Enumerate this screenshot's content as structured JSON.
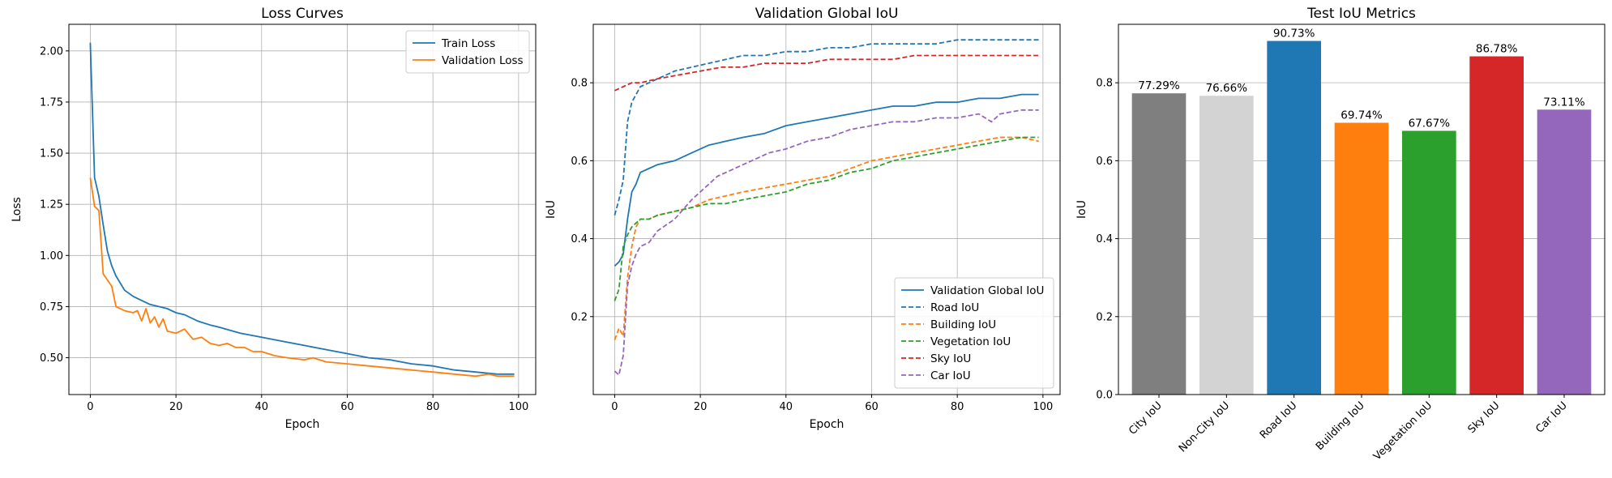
{
  "chart_data": [
    {
      "type": "line",
      "title": "Loss Curves",
      "xlabel": "Epoch",
      "ylabel": "Loss",
      "xlim": [
        -5,
        104
      ],
      "ylim": [
        0.32,
        2.13
      ],
      "xticks": [
        0,
        20,
        40,
        60,
        80,
        100
      ],
      "xtick_labels": [
        "0",
        "20",
        "40",
        "60",
        "80",
        "100"
      ],
      "yticks": [
        0.5,
        0.75,
        1.0,
        1.25,
        1.5,
        1.75,
        2.0
      ],
      "ytick_labels": [
        "0.50",
        "0.75",
        "1.00",
        "1.25",
        "1.50",
        "1.75",
        "2.00"
      ],
      "grid": true,
      "legend": "top-right",
      "series": [
        {
          "name": "Train Loss",
          "color": "#1f77b4",
          "dash": "solid",
          "points": [
            [
              0,
              2.04
            ],
            [
              1,
              1.38
            ],
            [
              2,
              1.29
            ],
            [
              3,
              1.15
            ],
            [
              4,
              1.02
            ],
            [
              5,
              0.95
            ],
            [
              6,
              0.9
            ],
            [
              8,
              0.83
            ],
            [
              10,
              0.8
            ],
            [
              12,
              0.78
            ],
            [
              14,
              0.76
            ],
            [
              16,
              0.75
            ],
            [
              18,
              0.74
            ],
            [
              20,
              0.72
            ],
            [
              22,
              0.71
            ],
            [
              25,
              0.68
            ],
            [
              28,
              0.66
            ],
            [
              30,
              0.65
            ],
            [
              35,
              0.62
            ],
            [
              40,
              0.6
            ],
            [
              45,
              0.58
            ],
            [
              50,
              0.56
            ],
            [
              55,
              0.54
            ],
            [
              60,
              0.52
            ],
            [
              65,
              0.5
            ],
            [
              70,
              0.49
            ],
            [
              75,
              0.47
            ],
            [
              80,
              0.46
            ],
            [
              85,
              0.44
            ],
            [
              90,
              0.43
            ],
            [
              95,
              0.42
            ],
            [
              99,
              0.42
            ]
          ]
        },
        {
          "name": "Validation Loss",
          "color": "#ff7f0e",
          "dash": "solid",
          "points": [
            [
              0,
              1.38
            ],
            [
              1,
              1.24
            ],
            [
              2,
              1.22
            ],
            [
              3,
              0.91
            ],
            [
              4,
              0.88
            ],
            [
              5,
              0.85
            ],
            [
              6,
              0.75
            ],
            [
              8,
              0.73
            ],
            [
              10,
              0.72
            ],
            [
              11,
              0.73
            ],
            [
              12,
              0.68
            ],
            [
              13,
              0.74
            ],
            [
              14,
              0.67
            ],
            [
              15,
              0.7
            ],
            [
              16,
              0.65
            ],
            [
              17,
              0.69
            ],
            [
              18,
              0.63
            ],
            [
              20,
              0.62
            ],
            [
              22,
              0.64
            ],
            [
              24,
              0.59
            ],
            [
              26,
              0.6
            ],
            [
              28,
              0.57
            ],
            [
              30,
              0.56
            ],
            [
              32,
              0.57
            ],
            [
              34,
              0.55
            ],
            [
              36,
              0.55
            ],
            [
              38,
              0.53
            ],
            [
              40,
              0.53
            ],
            [
              43,
              0.51
            ],
            [
              46,
              0.5
            ],
            [
              50,
              0.49
            ],
            [
              52,
              0.5
            ],
            [
              55,
              0.48
            ],
            [
              60,
              0.47
            ],
            [
              65,
              0.46
            ],
            [
              70,
              0.45
            ],
            [
              75,
              0.44
            ],
            [
              80,
              0.43
            ],
            [
              85,
              0.42
            ],
            [
              90,
              0.41
            ],
            [
              93,
              0.42
            ],
            [
              95,
              0.41
            ],
            [
              99,
              0.41
            ]
          ]
        }
      ]
    },
    {
      "type": "line",
      "title": "Validation Global IoU",
      "xlabel": "Epoch",
      "ylabel": "IoU",
      "xlim": [
        -5,
        104
      ],
      "ylim": [
        0.0,
        0.95
      ],
      "xticks": [
        0,
        20,
        40,
        60,
        80,
        100
      ],
      "xtick_labels": [
        "0",
        "20",
        "40",
        "60",
        "80",
        "100"
      ],
      "yticks": [
        0.2,
        0.4,
        0.6,
        0.8
      ],
      "ytick_labels": [
        "0.2",
        "0.4",
        "0.6",
        "0.8"
      ],
      "grid": true,
      "legend": "bottom-right",
      "series": [
        {
          "name": "Validation Global IoU",
          "color": "#1f77b4",
          "dash": "solid",
          "points": [
            [
              0,
              0.33
            ],
            [
              1,
              0.34
            ],
            [
              2,
              0.36
            ],
            [
              3,
              0.45
            ],
            [
              4,
              0.52
            ],
            [
              5,
              0.54
            ],
            [
              6,
              0.57
            ],
            [
              8,
              0.58
            ],
            [
              10,
              0.59
            ],
            [
              14,
              0.6
            ],
            [
              18,
              0.62
            ],
            [
              22,
              0.64
            ],
            [
              26,
              0.65
            ],
            [
              30,
              0.66
            ],
            [
              35,
              0.67
            ],
            [
              40,
              0.69
            ],
            [
              45,
              0.7
            ],
            [
              50,
              0.71
            ],
            [
              55,
              0.72
            ],
            [
              60,
              0.73
            ],
            [
              65,
              0.74
            ],
            [
              70,
              0.74
            ],
            [
              75,
              0.75
            ],
            [
              80,
              0.75
            ],
            [
              85,
              0.76
            ],
            [
              90,
              0.76
            ],
            [
              95,
              0.77
            ],
            [
              99,
              0.77
            ]
          ]
        },
        {
          "name": "Road IoU",
          "color": "#1f77b4",
          "dash": "dashed",
          "points": [
            [
              0,
              0.46
            ],
            [
              1,
              0.5
            ],
            [
              2,
              0.55
            ],
            [
              3,
              0.7
            ],
            [
              4,
              0.75
            ],
            [
              5,
              0.77
            ],
            [
              6,
              0.79
            ],
            [
              8,
              0.8
            ],
            [
              10,
              0.81
            ],
            [
              14,
              0.83
            ],
            [
              18,
              0.84
            ],
            [
              22,
              0.85
            ],
            [
              26,
              0.86
            ],
            [
              30,
              0.87
            ],
            [
              35,
              0.87
            ],
            [
              40,
              0.88
            ],
            [
              45,
              0.88
            ],
            [
              50,
              0.89
            ],
            [
              55,
              0.89
            ],
            [
              60,
              0.9
            ],
            [
              65,
              0.9
            ],
            [
              70,
              0.9
            ],
            [
              75,
              0.9
            ],
            [
              80,
              0.91
            ],
            [
              85,
              0.91
            ],
            [
              90,
              0.91
            ],
            [
              95,
              0.91
            ],
            [
              99,
              0.91
            ]
          ]
        },
        {
          "name": "Building IoU",
          "color": "#ff7f0e",
          "dash": "dashed",
          "points": [
            [
              0,
              0.14
            ],
            [
              1,
              0.17
            ],
            [
              2,
              0.15
            ],
            [
              3,
              0.3
            ],
            [
              4,
              0.38
            ],
            [
              5,
              0.43
            ],
            [
              6,
              0.45
            ],
            [
              8,
              0.45
            ],
            [
              10,
              0.46
            ],
            [
              14,
              0.47
            ],
            [
              18,
              0.48
            ],
            [
              22,
              0.5
            ],
            [
              26,
              0.51
            ],
            [
              30,
              0.52
            ],
            [
              35,
              0.53
            ],
            [
              40,
              0.54
            ],
            [
              45,
              0.55
            ],
            [
              50,
              0.56
            ],
            [
              55,
              0.58
            ],
            [
              60,
              0.6
            ],
            [
              65,
              0.61
            ],
            [
              70,
              0.62
            ],
            [
              75,
              0.63
            ],
            [
              80,
              0.64
            ],
            [
              85,
              0.65
            ],
            [
              90,
              0.66
            ],
            [
              95,
              0.66
            ],
            [
              99,
              0.65
            ]
          ]
        },
        {
          "name": "Vegetation IoU",
          "color": "#2ca02c",
          "dash": "dashed",
          "points": [
            [
              0,
              0.24
            ],
            [
              1,
              0.27
            ],
            [
              2,
              0.38
            ],
            [
              3,
              0.41
            ],
            [
              4,
              0.43
            ],
            [
              5,
              0.44
            ],
            [
              6,
              0.45
            ],
            [
              8,
              0.45
            ],
            [
              10,
              0.46
            ],
            [
              14,
              0.47
            ],
            [
              18,
              0.48
            ],
            [
              22,
              0.49
            ],
            [
              26,
              0.49
            ],
            [
              30,
              0.5
            ],
            [
              35,
              0.51
            ],
            [
              40,
              0.52
            ],
            [
              45,
              0.54
            ],
            [
              50,
              0.55
            ],
            [
              55,
              0.57
            ],
            [
              60,
              0.58
            ],
            [
              65,
              0.6
            ],
            [
              70,
              0.61
            ],
            [
              75,
              0.62
            ],
            [
              80,
              0.63
            ],
            [
              85,
              0.64
            ],
            [
              90,
              0.65
            ],
            [
              95,
              0.66
            ],
            [
              99,
              0.66
            ]
          ]
        },
        {
          "name": "Sky IoU",
          "color": "#d62728",
          "dash": "dashed",
          "points": [
            [
              0,
              0.78
            ],
            [
              2,
              0.79
            ],
            [
              4,
              0.8
            ],
            [
              6,
              0.8
            ],
            [
              10,
              0.81
            ],
            [
              15,
              0.82
            ],
            [
              20,
              0.83
            ],
            [
              25,
              0.84
            ],
            [
              30,
              0.84
            ],
            [
              35,
              0.85
            ],
            [
              40,
              0.85
            ],
            [
              45,
              0.85
            ],
            [
              50,
              0.86
            ],
            [
              55,
              0.86
            ],
            [
              60,
              0.86
            ],
            [
              65,
              0.86
            ],
            [
              70,
              0.87
            ],
            [
              75,
              0.87
            ],
            [
              80,
              0.87
            ],
            [
              85,
              0.87
            ],
            [
              90,
              0.87
            ],
            [
              95,
              0.87
            ],
            [
              99,
              0.87
            ]
          ]
        },
        {
          "name": "Car IoU",
          "color": "#9467bd",
          "dash": "dashed",
          "points": [
            [
              0,
              0.06
            ],
            [
              1,
              0.05
            ],
            [
              2,
              0.1
            ],
            [
              3,
              0.28
            ],
            [
              4,
              0.33
            ],
            [
              5,
              0.36
            ],
            [
              6,
              0.38
            ],
            [
              8,
              0.39
            ],
            [
              10,
              0.42
            ],
            [
              14,
              0.45
            ],
            [
              18,
              0.5
            ],
            [
              20,
              0.52
            ],
            [
              24,
              0.56
            ],
            [
              28,
              0.58
            ],
            [
              32,
              0.6
            ],
            [
              36,
              0.62
            ],
            [
              40,
              0.63
            ],
            [
              45,
              0.65
            ],
            [
              50,
              0.66
            ],
            [
              55,
              0.68
            ],
            [
              60,
              0.69
            ],
            [
              65,
              0.7
            ],
            [
              70,
              0.7
            ],
            [
              75,
              0.71
            ],
            [
              80,
              0.71
            ],
            [
              85,
              0.72
            ],
            [
              88,
              0.7
            ],
            [
              90,
              0.72
            ],
            [
              95,
              0.73
            ],
            [
              99,
              0.73
            ]
          ]
        }
      ]
    },
    {
      "type": "bar",
      "title": "Test IoU Metrics",
      "xlabel": "",
      "ylabel": "IoU",
      "ylim": [
        0.0,
        0.95
      ],
      "yticks": [
        0.0,
        0.2,
        0.4,
        0.6,
        0.8
      ],
      "ytick_labels": [
        "0.0",
        "0.2",
        "0.4",
        "0.6",
        "0.8"
      ],
      "grid": true,
      "categories": [
        "City IoU",
        "Non-City IoU",
        "Road IoU",
        "Building IoU",
        "Vegetation IoU",
        "Sky IoU",
        "Car IoU"
      ],
      "values": [
        0.7729,
        0.7666,
        0.9073,
        0.6974,
        0.6767,
        0.8678,
        0.7311
      ],
      "value_labels": [
        "77.29%",
        "76.66%",
        "90.73%",
        "69.74%",
        "67.67%",
        "86.78%",
        "73.11%"
      ],
      "colors": [
        "#7f7f7f",
        "#d3d3d3",
        "#1f77b4",
        "#ff7f0e",
        "#2ca02c",
        "#d62728",
        "#9467bd"
      ]
    }
  ]
}
